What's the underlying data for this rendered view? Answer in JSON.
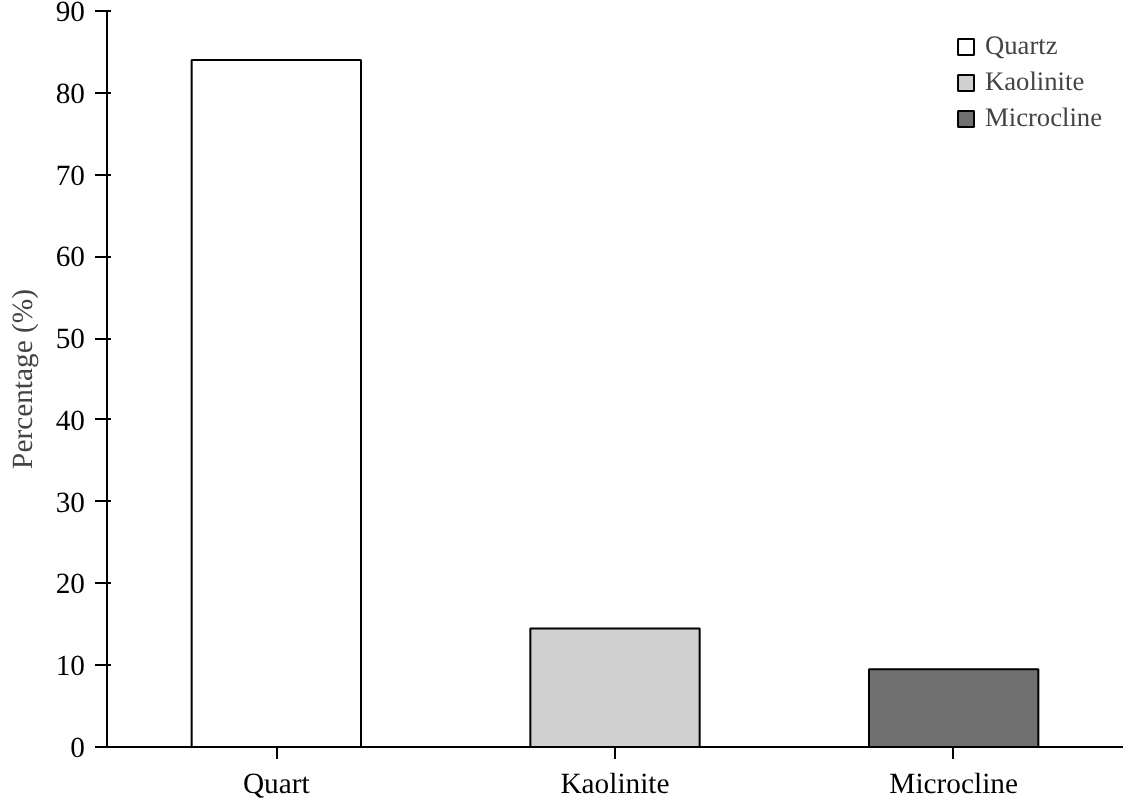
{
  "chart_data": {
    "type": "bar",
    "ylabel": "Percentage (%)",
    "categories": [
      "Quart",
      "Kaolinite",
      "Microcline"
    ],
    "series": [
      {
        "name": "Quartz",
        "color": "#ffffff",
        "values": [
          84,
          null,
          null
        ]
      },
      {
        "name": "Kaolinite",
        "color": "#d0d0d0",
        "values": [
          null,
          14.5,
          null
        ]
      },
      {
        "name": "Microcline",
        "color": "#707070",
        "values": [
          null,
          null,
          9.5
        ]
      }
    ],
    "ylim": [
      0,
      90
    ],
    "yticks": [
      0,
      10,
      20,
      30,
      40,
      50,
      60,
      70,
      80,
      90
    ],
    "grid": false,
    "legend": "top right"
  }
}
